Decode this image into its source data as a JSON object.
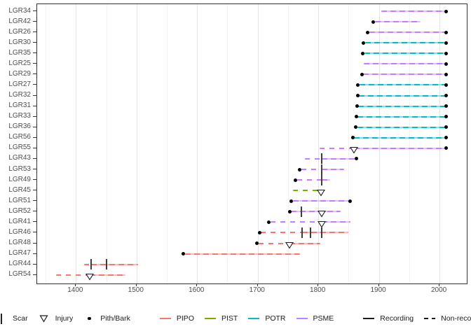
{
  "figure": {
    "background": "#ffffff",
    "panel_border": "#333333",
    "grid_major_color": "#e3e3e3",
    "grid_minor_color": "#f2f2f2",
    "axis_text_color": "#4d4d4d",
    "legend_text_color": "#1a1a1a"
  },
  "legend": {
    "marker_items": [
      {
        "label": "Scar",
        "symbol": "scar-line"
      },
      {
        "label": "Injury",
        "symbol": "triangle-down"
      },
      {
        "label": "Pith/Bark",
        "symbol": "dot"
      }
    ],
    "species_items": [
      {
        "label": "PIPO",
        "color": "#F8766D"
      },
      {
        "label": "PIST",
        "color": "#7CAE00"
      },
      {
        "label": "POTR",
        "color": "#00BFC4"
      },
      {
        "label": "PSME",
        "color": "#C77CFF"
      }
    ],
    "linetype_items": [
      {
        "label": "Recording",
        "style": "solid"
      },
      {
        "label": "Non-recording",
        "style": "dashed"
      }
    ]
  },
  "chart_data": {
    "type": "line",
    "subtype": "fire-history-timeline",
    "x_domain": [
      1336,
      2045
    ],
    "x_ticks": [
      1400,
      1500,
      1600,
      1700,
      1800,
      1900,
      2000
    ],
    "x_minor_ticks": [
      1350,
      1450,
      1550,
      1650,
      1750,
      1850,
      1950
    ],
    "grid": true,
    "legend_position": "bottom",
    "species_colors": {
      "PIPO": "#F8766D",
      "PIST": "#7CAE00",
      "POTR": "#00BFC4",
      "PSME": "#C77CFF"
    },
    "series": [
      {
        "id": "LGR34",
        "species": "PSME",
        "pith_dot": false,
        "bark_dot": true,
        "segments": [
          {
            "type": "recording",
            "start": 1904,
            "end": 2009
          }
        ],
        "scars": [],
        "injuries": []
      },
      {
        "id": "LGR42",
        "species": "PSME",
        "pith_dot": true,
        "bark_dot": false,
        "segments": [
          {
            "type": "recording",
            "start": 1893,
            "end": 1969
          }
        ],
        "scars": [],
        "injuries": []
      },
      {
        "id": "LGR26",
        "species": "PSME",
        "pith_dot": true,
        "bark_dot": true,
        "segments": [
          {
            "type": "recording",
            "start": 1884,
            "end": 2009
          }
        ],
        "scars": [],
        "injuries": []
      },
      {
        "id": "LGR30",
        "species": "POTR",
        "pith_dot": true,
        "bark_dot": true,
        "segments": [
          {
            "type": "recording",
            "start": 1877,
            "end": 2009
          }
        ],
        "scars": [],
        "injuries": []
      },
      {
        "id": "LGR35",
        "species": "POTR",
        "pith_dot": true,
        "bark_dot": true,
        "segments": [
          {
            "type": "recording",
            "start": 1876,
            "end": 2009
          }
        ],
        "scars": [],
        "injuries": []
      },
      {
        "id": "LGR25",
        "species": "PSME",
        "pith_dot": false,
        "bark_dot": true,
        "segments": [
          {
            "type": "recording",
            "start": 1875,
            "end": 2009
          }
        ],
        "scars": [],
        "injuries": []
      },
      {
        "id": "LGR29",
        "species": "PSME",
        "pith_dot": true,
        "bark_dot": true,
        "segments": [
          {
            "type": "recording",
            "start": 1874,
            "end": 2009
          }
        ],
        "scars": [],
        "injuries": []
      },
      {
        "id": "LGR27",
        "species": "POTR",
        "pith_dot": true,
        "bark_dot": true,
        "segments": [
          {
            "type": "recording",
            "start": 1868,
            "end": 2009
          }
        ],
        "scars": [],
        "injuries": []
      },
      {
        "id": "LGR32",
        "species": "POTR",
        "pith_dot": true,
        "bark_dot": true,
        "segments": [
          {
            "type": "recording",
            "start": 1867,
            "end": 2009
          }
        ],
        "scars": [],
        "injuries": []
      },
      {
        "id": "LGR31",
        "species": "POTR",
        "pith_dot": true,
        "bark_dot": true,
        "segments": [
          {
            "type": "recording",
            "start": 1866,
            "end": 2009
          }
        ],
        "scars": [],
        "injuries": []
      },
      {
        "id": "LGR33",
        "species": "POTR",
        "pith_dot": true,
        "bark_dot": true,
        "segments": [
          {
            "type": "recording",
            "start": 1865,
            "end": 2009
          }
        ],
        "scars": [],
        "injuries": []
      },
      {
        "id": "LGR36",
        "species": "POTR",
        "pith_dot": true,
        "bark_dot": true,
        "segments": [
          {
            "type": "recording",
            "start": 1864,
            "end": 2009
          }
        ],
        "scars": [],
        "injuries": []
      },
      {
        "id": "LGR56",
        "species": "POTR",
        "pith_dot": true,
        "bark_dot": true,
        "segments": [
          {
            "type": "recording",
            "start": 1859,
            "end": 2009
          }
        ],
        "scars": [],
        "injuries": []
      },
      {
        "id": "LGR55",
        "species": "PSME",
        "pith_dot": false,
        "bark_dot": true,
        "segments": [
          {
            "type": "non-recording",
            "start": 1802,
            "end": 1859
          },
          {
            "type": "recording",
            "start": 1859,
            "end": 2009
          }
        ],
        "scars": [],
        "injuries": [
          1859
        ]
      },
      {
        "id": "LGR43",
        "species": "PSME",
        "pith_dot": false,
        "bark_dot": true,
        "segments": [
          {
            "type": "non-recording",
            "start": 1778,
            "end": 1806
          },
          {
            "type": "recording",
            "start": 1806,
            "end": 1860
          }
        ],
        "scars": [
          1806
        ],
        "injuries": []
      },
      {
        "id": "LGR53",
        "species": "PSME",
        "pith_dot": true,
        "bark_dot": false,
        "segments": [
          {
            "type": "non-recording",
            "start": 1772,
            "end": 1806
          },
          {
            "type": "recording",
            "start": 1806,
            "end": 1843
          }
        ],
        "scars": [
          1806
        ],
        "injuries": []
      },
      {
        "id": "LGR49",
        "species": "PSME",
        "pith_dot": true,
        "bark_dot": false,
        "segments": [
          {
            "type": "non-recording",
            "start": 1765,
            "end": 1806
          },
          {
            "type": "recording",
            "start": 1806,
            "end": 1819
          }
        ],
        "scars": [
          1806
        ],
        "injuries": []
      },
      {
        "id": "LGR45",
        "species": "PIST",
        "pith_dot": false,
        "bark_dot": false,
        "segments": [
          {
            "type": "non-recording",
            "start": 1758,
            "end": 1804
          }
        ],
        "scars": [],
        "injuries": [
          1804
        ]
      },
      {
        "id": "LGR51",
        "species": "PSME",
        "pith_dot": true,
        "bark_dot": true,
        "segments": [
          {
            "type": "recording",
            "start": 1758,
            "end": 1850
          }
        ],
        "scars": [],
        "injuries": []
      },
      {
        "id": "LGR52",
        "species": "PSME",
        "pith_dot": true,
        "bark_dot": false,
        "segments": [
          {
            "type": "recording",
            "start": 1755,
            "end": 1837
          }
        ],
        "scars": [
          1772
        ],
        "injuries": [
          1806
        ]
      },
      {
        "id": "LGR41",
        "species": "PSME",
        "pith_dot": true,
        "bark_dot": false,
        "segments": [
          {
            "type": "non-recording",
            "start": 1721,
            "end": 1806
          },
          {
            "type": "recording",
            "start": 1806,
            "end": 1853
          }
        ],
        "scars": [],
        "injuries": [
          1806
        ]
      },
      {
        "id": "LGR46",
        "species": "PIPO",
        "pith_dot": true,
        "bark_dot": false,
        "segments": [
          {
            "type": "non-recording",
            "start": 1705,
            "end": 1773
          },
          {
            "type": "recording",
            "start": 1773,
            "end": 1849
          }
        ],
        "scars": [
          1773,
          1787,
          1806
        ],
        "injuries": []
      },
      {
        "id": "LGR48",
        "species": "PIPO",
        "pith_dot": true,
        "bark_dot": false,
        "segments": [
          {
            "type": "non-recording",
            "start": 1701,
            "end": 1752
          },
          {
            "type": "recording",
            "start": 1752,
            "end": 1803
          }
        ],
        "scars": [],
        "injuries": [
          1752
        ]
      },
      {
        "id": "LGR47",
        "species": "PIPO",
        "pith_dot": true,
        "bark_dot": false,
        "segments": [
          {
            "type": "recording",
            "start": 1580,
            "end": 1770
          }
        ],
        "scars": [],
        "injuries": []
      },
      {
        "id": "LGR44",
        "species": "PIPO",
        "pith_dot": false,
        "bark_dot": false,
        "segments": [
          {
            "type": "non-recording",
            "start": 1413,
            "end": 1425
          },
          {
            "type": "recording",
            "start": 1425,
            "end": 1503
          }
        ],
        "scars": [
          1425,
          1450
        ],
        "injuries": []
      },
      {
        "id": "LGR54",
        "species": "PIPO",
        "pith_dot": false,
        "bark_dot": false,
        "segments": [
          {
            "type": "non-recording",
            "start": 1367,
            "end": 1423
          },
          {
            "type": "recording",
            "start": 1423,
            "end": 1482
          }
        ],
        "scars": [],
        "injuries": [
          1423
        ]
      }
    ]
  }
}
